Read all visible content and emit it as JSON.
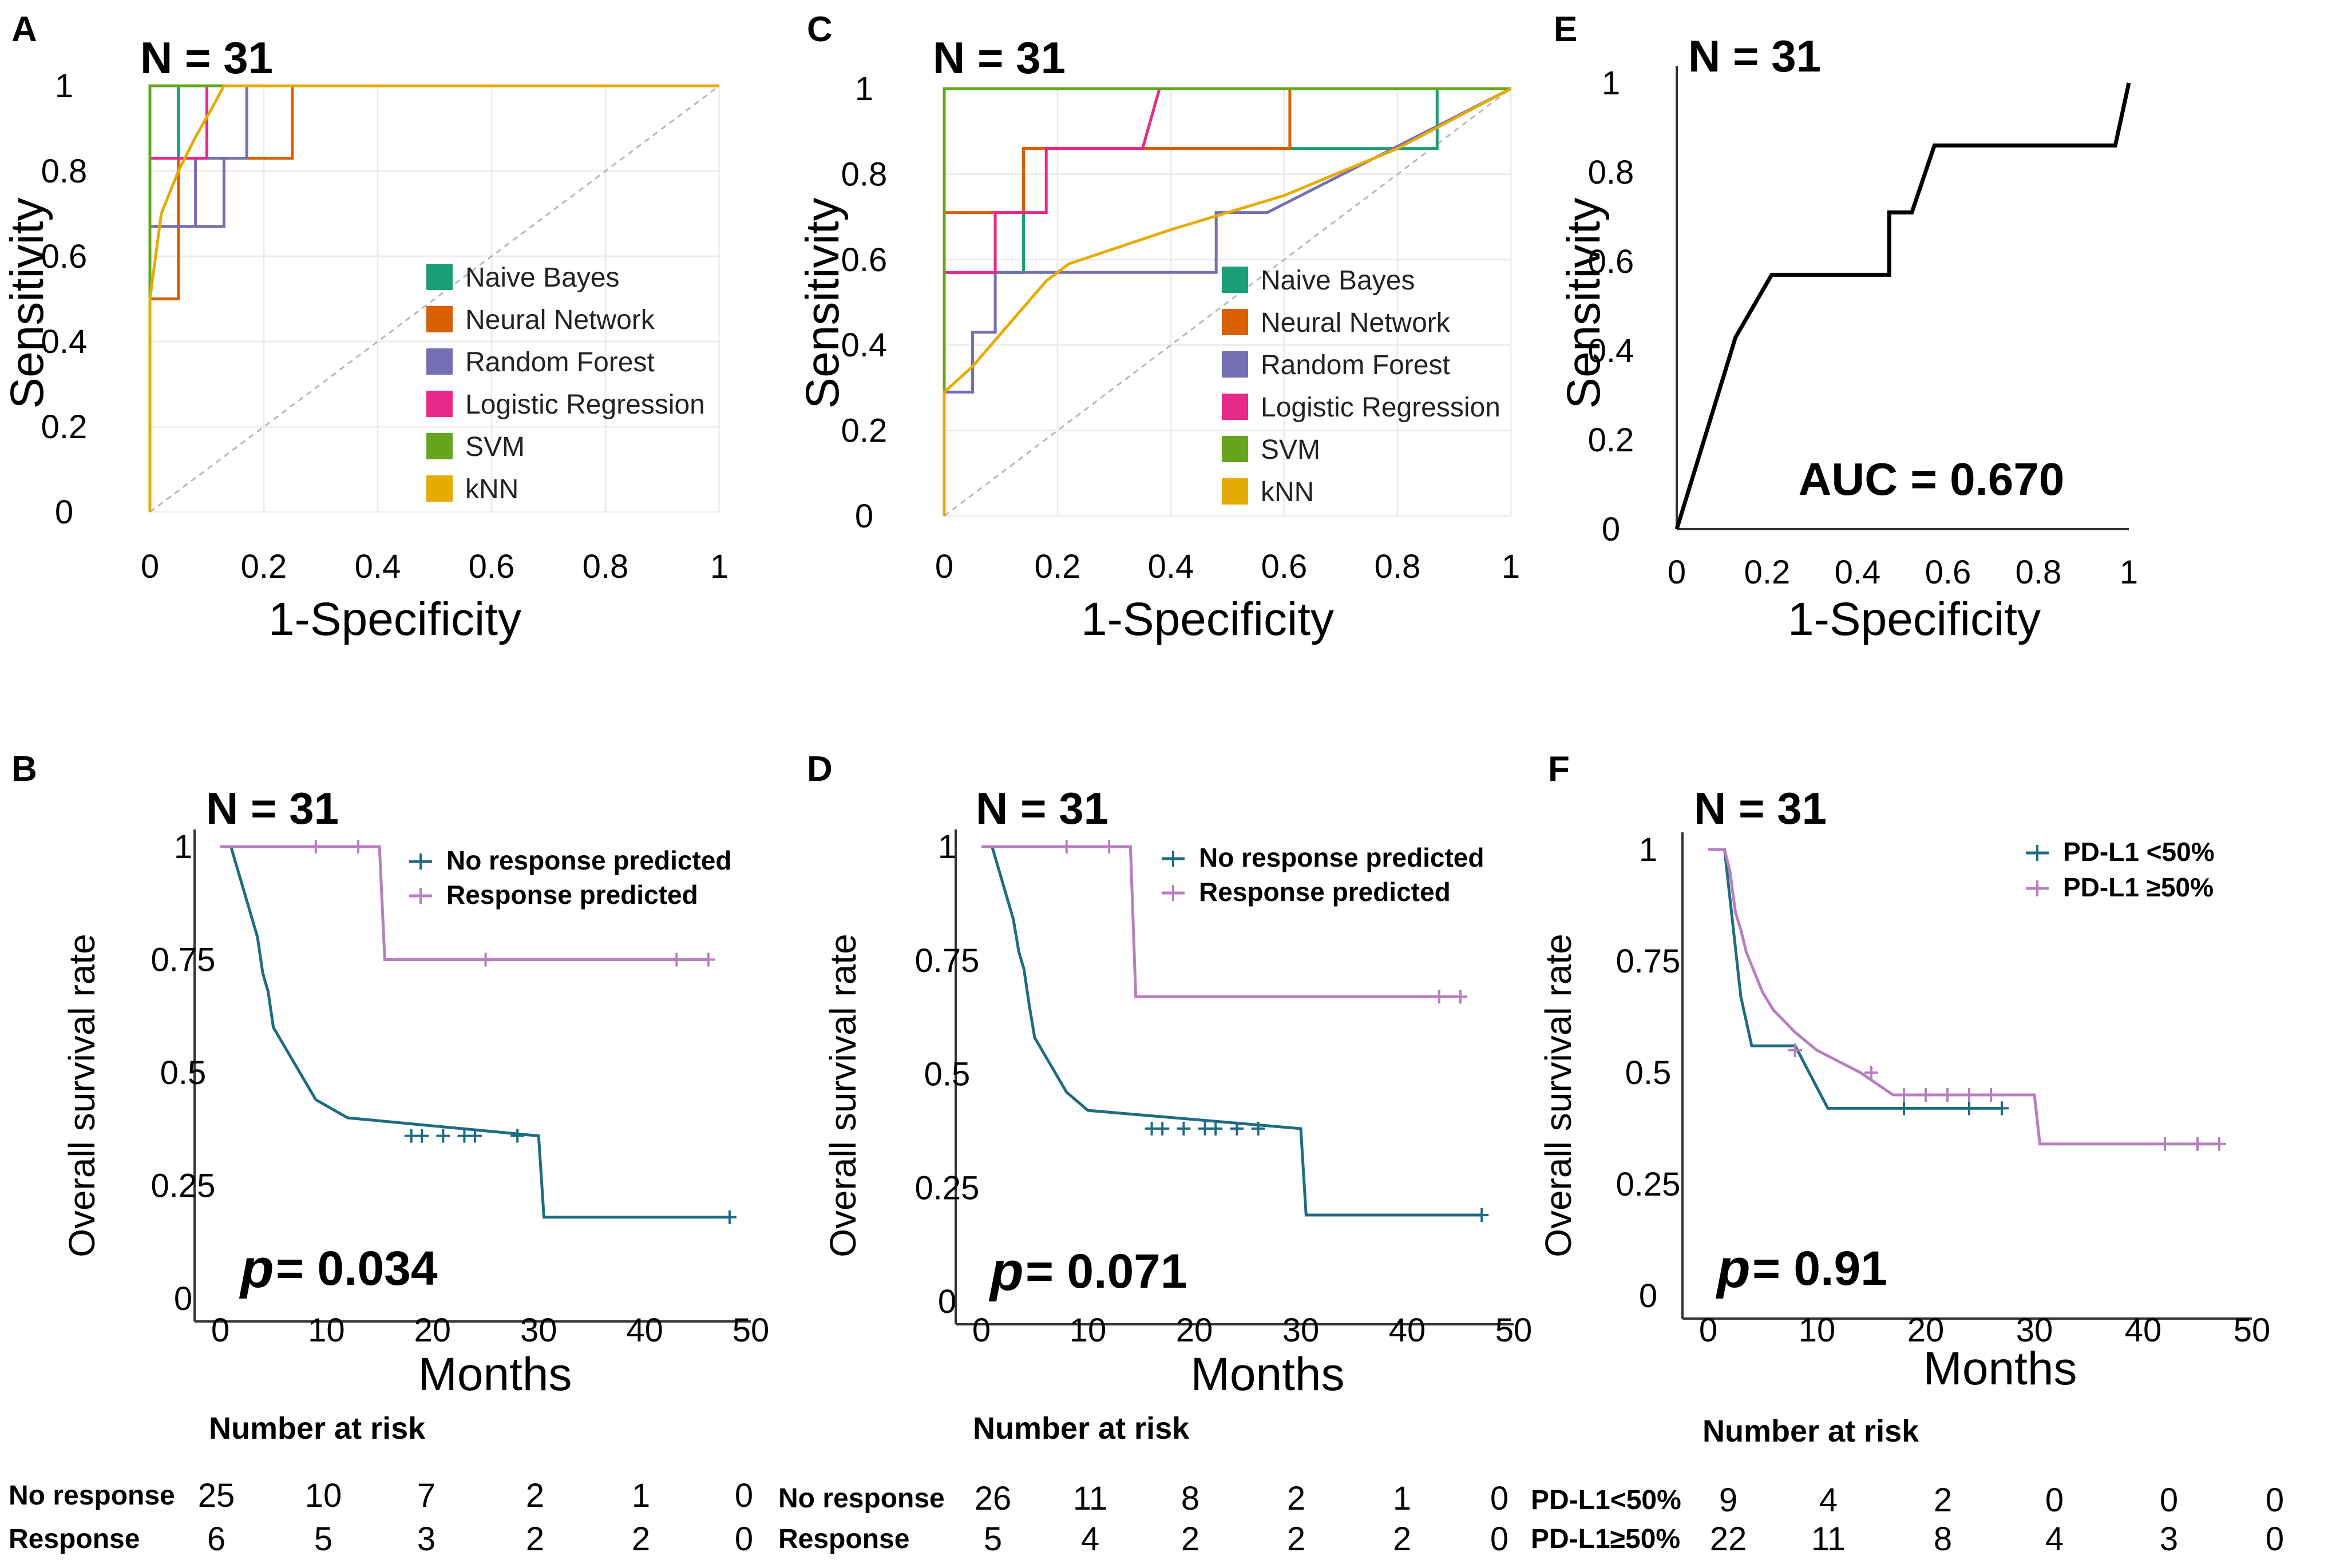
{
  "chart_data": [
    {
      "panel": "A",
      "type": "line",
      "n_label": "N = 31",
      "xlabel": "1-Specificity",
      "ylabel": "Sensitivity",
      "xlim": [
        0,
        1
      ],
      "ylim": [
        0,
        1
      ],
      "x_ticks": [
        "0",
        "0.2",
        "0.4",
        "0.6",
        "0.8",
        "1"
      ],
      "y_ticks": [
        "0",
        "0.2",
        "0.4",
        "0.6",
        "0.8",
        "1"
      ],
      "grid": true,
      "diagonal": true,
      "legend_position": "lower-right",
      "series": [
        {
          "name": "Naive Bayes",
          "color": "#1a9e77",
          "x": [
            0,
            0,
            0.05,
            0.05,
            1
          ],
          "y": [
            0,
            0.83,
            0.83,
            1,
            1
          ]
        },
        {
          "name": "Neural Network",
          "color": "#d95f02",
          "x": [
            0,
            0,
            0.05,
            0.05,
            0.25,
            0.25,
            1
          ],
          "y": [
            0,
            0.5,
            0.5,
            0.83,
            0.83,
            1,
            1
          ]
        },
        {
          "name": "Random Forest",
          "color": "#7570b3",
          "x": [
            0,
            0,
            0.13,
            0.13,
            0.08,
            0.08,
            0,
            0,
            0.1,
            0.1,
            0.17,
            0.17,
            1
          ],
          "y": [
            0,
            0.67,
            0.67,
            0.83,
            0.83,
            0.67,
            0.67,
            1,
            1,
            0.83,
            0.83,
            1,
            1
          ]
        },
        {
          "name": "Logistic Regression",
          "color": "#e7298a",
          "x": [
            0,
            0,
            0.1,
            0.1,
            1
          ],
          "y": [
            0,
            0.83,
            0.83,
            1,
            1
          ]
        },
        {
          "name": "SVM",
          "color": "#66a61e",
          "x": [
            0,
            0,
            1
          ],
          "y": [
            0,
            1,
            1
          ]
        },
        {
          "name": "kNN",
          "color": "#e6ab02",
          "x": [
            0,
            0,
            0.02,
            0.05,
            0.08,
            0.11,
            0.13,
            1
          ],
          "y": [
            0,
            0.5,
            0.7,
            0.8,
            0.88,
            0.95,
            1,
            1
          ]
        }
      ]
    },
    {
      "panel": "C",
      "type": "line",
      "n_label": "N = 31",
      "xlabel": "1-Specificity",
      "ylabel": "Sensitivity",
      "xlim": [
        0,
        1
      ],
      "ylim": [
        0,
        1
      ],
      "x_ticks": [
        "0",
        "0.2",
        "0.4",
        "0.6",
        "0.8",
        "1"
      ],
      "y_ticks": [
        "0",
        "0.2",
        "0.4",
        "0.6",
        "0.8",
        "1"
      ],
      "grid": true,
      "diagonal": true,
      "legend_position": "lower-right",
      "series": [
        {
          "name": "Naive Bayes",
          "color": "#1a9e77",
          "x": [
            0,
            0,
            0.14,
            0.14,
            0.87,
            0.87,
            1
          ],
          "y": [
            0,
            0.57,
            0.57,
            0.86,
            0.86,
            1,
            1
          ]
        },
        {
          "name": "Neural Network",
          "color": "#d95f02",
          "x": [
            0,
            0,
            0.14,
            0.14,
            0.61,
            0.61,
            1
          ],
          "y": [
            0,
            0.71,
            0.71,
            0.86,
            0.86,
            1,
            1
          ]
        },
        {
          "name": "Random Forest",
          "color": "#7570b3",
          "x": [
            0,
            0,
            0.05,
            0.05,
            0.09,
            0.09,
            0.18,
            0.18,
            0.48,
            0.48,
            0.57,
            1
          ],
          "y": [
            0,
            0.29,
            0.29,
            0.43,
            0.43,
            0.57,
            0.57,
            0.57,
            0.57,
            0.71,
            0.71,
            1
          ]
        },
        {
          "name": "Logistic Regression",
          "color": "#e7298a",
          "x": [
            0,
            0,
            0.09,
            0.09,
            0.18,
            0.18,
            0.35,
            0.38,
            1
          ],
          "y": [
            0,
            0.57,
            0.57,
            0.71,
            0.71,
            0.86,
            0.86,
            1,
            1
          ]
        },
        {
          "name": "SVM",
          "color": "#66a61e",
          "x": [
            0,
            0,
            1
          ],
          "y": [
            0,
            1,
            1
          ]
        },
        {
          "name": "kNN",
          "color": "#e6ab02",
          "x": [
            0,
            0,
            0.05,
            0.18,
            0.22,
            0.4,
            0.6,
            0.8,
            1
          ],
          "y": [
            0,
            0.29,
            0.35,
            0.55,
            0.59,
            0.67,
            0.75,
            0.86,
            1
          ]
        }
      ]
    },
    {
      "panel": "E",
      "type": "line",
      "n_label": "N = 31",
      "xlabel": "1-Specificity",
      "ylabel": "Sensitivity",
      "xlim": [
        0,
        1
      ],
      "ylim": [
        0,
        1
      ],
      "x_ticks": [
        "0",
        "0.2",
        "0.4",
        "0.6",
        "0.8",
        "1"
      ],
      "y_ticks": [
        "0",
        "0.2",
        "0.4",
        "0.6",
        "0.8",
        "1"
      ],
      "grid": false,
      "diagonal": false,
      "annotation": "AUC = 0.670",
      "series": [
        {
          "name": "ROC",
          "color": "#000000",
          "x": [
            0,
            0.13,
            0.21,
            0.47,
            0.47,
            0.52,
            0.57,
            0.97,
            1
          ],
          "y": [
            0,
            0.43,
            0.57,
            0.57,
            0.71,
            0.71,
            0.86,
            0.86,
            1
          ]
        }
      ]
    },
    {
      "panel": "B",
      "type": "line",
      "subtype": "kaplan-meier",
      "n_label": "N = 31",
      "xlabel": "Months",
      "ylabel": "Overall survival rate",
      "xlim": [
        0,
        50
      ],
      "ylim": [
        0,
        1
      ],
      "x_ticks": [
        "0",
        "10",
        "20",
        "30",
        "40",
        "50"
      ],
      "y_ticks": [
        "0",
        "0.25",
        "0.5",
        "0.75",
        "1"
      ],
      "p_symbol": "p",
      "p_text": "= 0.034",
      "legend_position": "top-right",
      "series": [
        {
          "name": "No response predicted",
          "color": "#1f6b82",
          "x": [
            0,
            1,
            1.5,
            2,
            2.5,
            3,
            3.5,
            4,
            4.5,
            5,
            6,
            7,
            8,
            9,
            12,
            30,
            30.5,
            48
          ],
          "y": [
            1,
            1,
            0.96,
            0.92,
            0.88,
            0.84,
            0.8,
            0.72,
            0.68,
            0.6,
            0.56,
            0.52,
            0.48,
            0.44,
            0.4,
            0.36,
            0.18,
            0.18
          ],
          "censor_x": [
            18,
            19,
            21,
            23,
            24,
            28,
            48
          ],
          "censor_y": [
            0.36,
            0.36,
            0.36,
            0.36,
            0.36,
            0.36,
            0.18
          ]
        },
        {
          "name": "Response predicted",
          "color": "#b77fbf",
          "x": [
            0,
            15,
            15.5,
            46
          ],
          "y": [
            1,
            1,
            0.75,
            0.75
          ],
          "censor_x": [
            9,
            13,
            25,
            43,
            46
          ],
          "censor_y": [
            1,
            1,
            0.75,
            0.75,
            0.75
          ]
        }
      ],
      "risk_table": {
        "title": "Number at risk",
        "rows": [
          {
            "label": "No response",
            "values": [
              "25",
              "10",
              "7",
              "2",
              "1",
              "0"
            ]
          },
          {
            "label": "Response",
            "values": [
              "6",
              "5",
              "3",
              "2",
              "2",
              "0"
            ]
          }
        ]
      }
    },
    {
      "panel": "D",
      "type": "line",
      "subtype": "kaplan-meier",
      "n_label": "N = 31",
      "xlabel": "Months",
      "ylabel": "Overall survival rate",
      "xlim": [
        0,
        50
      ],
      "ylim": [
        0,
        1
      ],
      "x_ticks": [
        "0",
        "10",
        "20",
        "30",
        "40",
        "50"
      ],
      "y_ticks": [
        "0",
        "0.25",
        "0.5",
        "0.75",
        "1"
      ],
      "p_symbol": "p",
      "p_text": "= 0.071",
      "legend_position": "top-right",
      "series": [
        {
          "name": "No response predicted",
          "color": "#1f6b82",
          "x": [
            0,
            1,
            1.5,
            2,
            2.5,
            3,
            3.5,
            4,
            4.5,
            5,
            6,
            7,
            8,
            10,
            30,
            30.5,
            47
          ],
          "y": [
            1,
            1,
            0.96,
            0.92,
            0.88,
            0.84,
            0.77,
            0.73,
            0.65,
            0.58,
            0.54,
            0.5,
            0.46,
            0.42,
            0.38,
            0.19,
            0.19
          ],
          "censor_x": [
            16,
            17,
            19,
            21,
            22,
            24,
            26,
            47
          ],
          "censor_y": [
            0.38,
            0.38,
            0.38,
            0.38,
            0.38,
            0.38,
            0.38,
            0.19
          ]
        },
        {
          "name": "Response predicted",
          "color": "#b77fbf",
          "x": [
            0,
            14,
            14.5,
            45
          ],
          "y": [
            1,
            1,
            0.67,
            0.67
          ],
          "censor_x": [
            8,
            12,
            43,
            45
          ],
          "censor_y": [
            1,
            1,
            0.67,
            0.67
          ]
        }
      ],
      "risk_table": {
        "title": "Number at risk",
        "rows": [
          {
            "label": "No response",
            "values": [
              "26",
              "11",
              "8",
              "2",
              "1",
              "0"
            ]
          },
          {
            "label": "Response",
            "values": [
              "5",
              "4",
              "2",
              "2",
              "2",
              "0"
            ]
          }
        ]
      }
    },
    {
      "panel": "F",
      "type": "line",
      "subtype": "kaplan-meier",
      "n_label": "N = 31",
      "xlabel": "Months",
      "ylabel": "Overall survival rate",
      "xlim": [
        0,
        50
      ],
      "ylim": [
        0,
        1
      ],
      "x_ticks": [
        "0",
        "10",
        "20",
        "30",
        "40",
        "50"
      ],
      "y_ticks": [
        "0",
        "0.25",
        "0.5",
        "0.75",
        "1"
      ],
      "p_symbol": "p",
      "p_text": "= 0.91",
      "legend_position": "top-right",
      "series": [
        {
          "name": "PD-L1 <50%",
          "color": "#1f6b82",
          "x": [
            0,
            1.5,
            2,
            2.5,
            3,
            4,
            8,
            11,
            27
          ],
          "y": [
            1,
            1,
            0.89,
            0.78,
            0.67,
            0.56,
            0.56,
            0.42,
            0.42
          ],
          "censor_x": [
            18,
            24,
            27
          ],
          "censor_y": [
            0.42,
            0.42,
            0.42
          ]
        },
        {
          "name": "PD-L1 ≥50%",
          "color": "#b77fbf",
          "x": [
            0,
            1.5,
            2,
            2.5,
            3,
            3.5,
            5,
            6,
            8,
            10,
            14,
            17,
            30,
            30.5,
            47
          ],
          "y": [
            1,
            1,
            0.95,
            0.86,
            0.82,
            0.77,
            0.68,
            0.64,
            0.59,
            0.55,
            0.5,
            0.45,
            0.45,
            0.34,
            0.34
          ],
          "censor_x": [
            8,
            15,
            18,
            20,
            22,
            24,
            26,
            42,
            45,
            47
          ],
          "censor_y": [
            0.55,
            0.5,
            0.45,
            0.45,
            0.45,
            0.45,
            0.45,
            0.34,
            0.34,
            0.34
          ]
        }
      ],
      "risk_table": {
        "title": "Number at risk",
        "rows": [
          {
            "label": "PD-L1<50%",
            "values": [
              "9",
              "4",
              "2",
              "0",
              "0",
              "0"
            ]
          },
          {
            "label": "PD-L1≥50%",
            "values": [
              "22",
              "11",
              "8",
              "4",
              "3",
              "0"
            ]
          }
        ]
      }
    }
  ]
}
